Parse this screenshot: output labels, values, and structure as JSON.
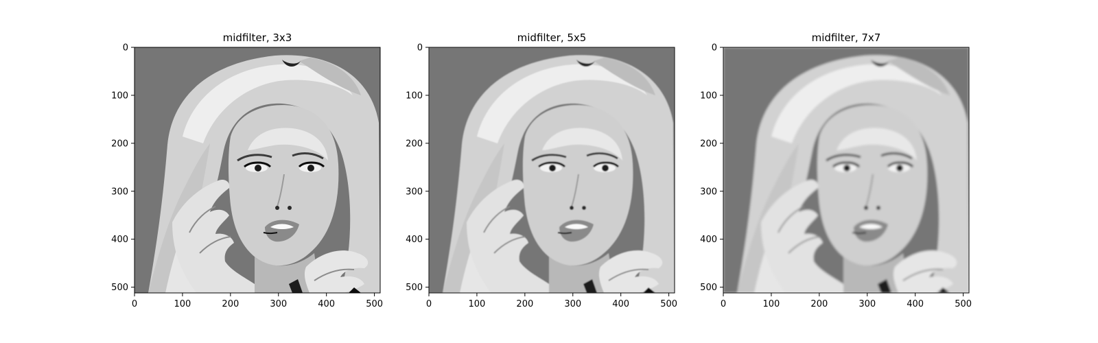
{
  "figure": {
    "background": "#ffffff",
    "layout": "1 row x 3 panels"
  },
  "chart_data": [
    {
      "type": "heatmap",
      "content": "grayscale image (woman's face, hands near face)",
      "colormap": "gray",
      "title": "midfilter, 3x3",
      "xlabel": "",
      "ylabel": "",
      "xlim": [
        0,
        512
      ],
      "ylim": [
        512,
        0
      ],
      "xticks": [
        0,
        100,
        200,
        300,
        400,
        500
      ],
      "yticks": [
        0,
        100,
        200,
        300,
        400,
        500
      ],
      "grid": false,
      "blur": 0.3
    },
    {
      "type": "heatmap",
      "content": "grayscale image (woman's face, hands near face)",
      "colormap": "gray",
      "title": "midfilter, 5x5",
      "xlabel": "",
      "ylabel": "",
      "xlim": [
        0,
        512
      ],
      "ylim": [
        512,
        0
      ],
      "xticks": [
        0,
        100,
        200,
        300,
        400,
        500
      ],
      "yticks": [
        0,
        100,
        200,
        300,
        400,
        500
      ],
      "grid": false,
      "blur": 0.9
    },
    {
      "type": "heatmap",
      "content": "grayscale image (woman's face, hands near face)",
      "colormap": "gray",
      "title": "midfilter, 7x7",
      "xlabel": "",
      "ylabel": "",
      "xlim": [
        0,
        512
      ],
      "ylim": [
        512,
        0
      ],
      "xticks": [
        0,
        100,
        200,
        300,
        400,
        500
      ],
      "yticks": [
        0,
        100,
        200,
        300,
        400,
        500
      ],
      "grid": false,
      "blur": 1.5
    }
  ]
}
